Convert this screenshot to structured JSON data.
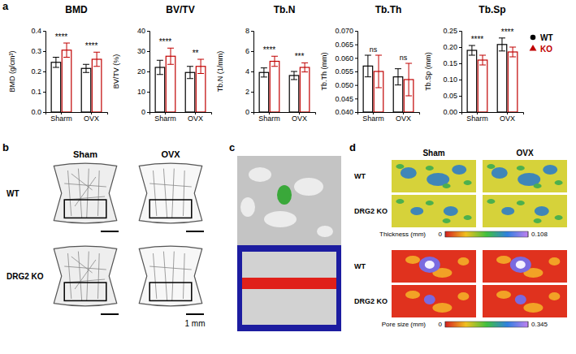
{
  "chart_data": [
    {
      "type": "bar",
      "title": "BMD",
      "y_label": "BMD (g/cm³)",
      "categories": [
        "Sharm",
        "OVX"
      ],
      "series": [
        {
          "name": "WT",
          "color": "#000000",
          "marker": "circle",
          "values": [
            0.245,
            0.215
          ],
          "errors": [
            0.025,
            0.02
          ]
        },
        {
          "name": "KO",
          "color": "#c00000",
          "marker": "triangle",
          "values": [
            0.305,
            0.26
          ],
          "errors": [
            0.035,
            0.035
          ]
        }
      ],
      "significance": [
        "****",
        "****"
      ],
      "ylim": [
        0,
        0.4
      ],
      "yticks": [
        {
          "value": 0,
          "label": "0.0"
        },
        0.1,
        0.2,
        0.3,
        0.4
      ]
    },
    {
      "type": "bar",
      "title": "BV/TV",
      "y_label": "BV/TV (%)",
      "categories": [
        "Sharm",
        "OVX"
      ],
      "series": [
        {
          "name": "WT",
          "color": "#000000",
          "marker": "circle",
          "values": [
            22,
            19.5
          ],
          "errors": [
            3.5,
            3
          ]
        },
        {
          "name": "KO",
          "color": "#c00000",
          "marker": "triangle",
          "values": [
            27.5,
            22.5
          ],
          "errors": [
            4,
            3.5
          ]
        }
      ],
      "significance": [
        "****",
        "**"
      ],
      "ylim": [
        0,
        40
      ],
      "yticks": [
        0,
        10,
        20,
        30,
        40
      ]
    },
    {
      "type": "bar",
      "title": "Tb.N",
      "y_label": "Tb.N (1/mm)",
      "categories": [
        "Sharm",
        "OVX"
      ],
      "series": [
        {
          "name": "WT",
          "color": "#000000",
          "marker": "circle",
          "values": [
            3.9,
            3.6
          ],
          "errors": [
            0.45,
            0.4
          ]
        },
        {
          "name": "KO",
          "color": "#c00000",
          "marker": "triangle",
          "values": [
            5.0,
            4.4
          ],
          "errors": [
            0.5,
            0.45
          ]
        }
      ],
      "significance": [
        "****",
        "***"
      ],
      "ylim": [
        0,
        8
      ],
      "yticks": [
        0,
        2,
        4,
        6,
        8
      ]
    },
    {
      "type": "bar",
      "title": "Tb.Th",
      "y_label": "Tb.Th (mm)",
      "categories": [
        "Sharm",
        "OVX"
      ],
      "series": [
        {
          "name": "WT",
          "color": "#000000",
          "marker": "circle",
          "values": [
            0.057,
            0.053
          ],
          "errors": [
            0.004,
            0.003
          ]
        },
        {
          "name": "KO",
          "color": "#c00000",
          "marker": "triangle",
          "values": [
            0.055,
            0.052
          ],
          "errors": [
            0.006,
            0.006
          ]
        }
      ],
      "significance": [
        "ns",
        "ns"
      ],
      "ylim": [
        0.04,
        0.07
      ],
      "yticks": [
        {
          "value": 0.04,
          "label": "0.040"
        },
        {
          "value": 0.045,
          "label": "0.045"
        },
        {
          "value": 0.05,
          "label": "0.050"
        },
        {
          "value": 0.055,
          "label": "0.055"
        },
        {
          "value": 0.06,
          "label": "0.060"
        },
        {
          "value": 0.065,
          "label": "0.065"
        },
        {
          "value": 0.07,
          "label": "0.070"
        }
      ]
    },
    {
      "type": "bar",
      "title": "Tb.Sp",
      "y_label": "Tb.Sp (mm)",
      "categories": [
        "Sharm",
        "OVX"
      ],
      "series": [
        {
          "name": "WT",
          "color": "#000000",
          "marker": "circle",
          "values": [
            0.19,
            0.208
          ],
          "errors": [
            0.015,
            0.02
          ]
        },
        {
          "name": "KO",
          "color": "#c00000",
          "marker": "triangle",
          "values": [
            0.16,
            0.185
          ],
          "errors": [
            0.015,
            0.015
          ]
        }
      ],
      "significance": [
        "****",
        "****"
      ],
      "ylim": [
        0,
        0.25
      ],
      "yticks": [
        {
          "value": 0,
          "label": "0.00"
        },
        {
          "value": 0.05,
          "label": "0.05"
        },
        {
          "value": 0.1,
          "label": "0.10"
        },
        {
          "value": 0.15,
          "label": "0.15"
        },
        {
          "value": 0.2,
          "label": "0.20"
        },
        0.25
      ],
      "legend": "right"
    }
  ],
  "panel_labels": [
    "a",
    "b",
    "c",
    "d"
  ],
  "panel_b": {
    "columns": [
      "Sham",
      "OVX"
    ],
    "rows": [
      "WT",
      "DRG2 KO"
    ],
    "scale_bar": "1 mm"
  },
  "panel_d": {
    "columns": [
      "Sham",
      "OVX"
    ],
    "rows": [
      "WT",
      "DRG2 KO"
    ],
    "colorbars": [
      {
        "title": "Thickness (mm)",
        "range": [
          0,
          0.108
        ],
        "ticks": [
          0,
          0.108
        ]
      },
      {
        "title": "Pore size (mm)",
        "range": [
          0,
          0.345
        ],
        "ticks": [
          0,
          0.345
        ]
      }
    ]
  }
}
